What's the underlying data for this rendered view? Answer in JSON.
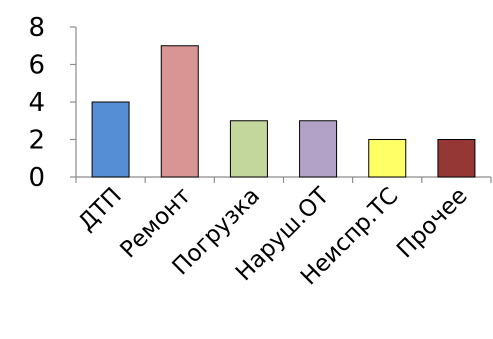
{
  "chart_data": {
    "type": "bar",
    "categories": [
      "ДТП",
      "Ремонт",
      "Погрузка",
      "Наруш.ОТ",
      "Неиспр.ТС",
      "Прочее"
    ],
    "values": [
      4,
      7,
      3,
      3,
      2,
      2
    ],
    "colors": [
      "#558ed5",
      "#d99594",
      "#c3d69b",
      "#b3a2c7",
      "#ffff66",
      "#953735"
    ],
    "yticks": [
      "0",
      "2",
      "4",
      "6",
      "8"
    ],
    "ylim": [
      0,
      8
    ],
    "grid": false,
    "legend": "none",
    "title": "",
    "xlabel": "",
    "ylabel": ""
  }
}
